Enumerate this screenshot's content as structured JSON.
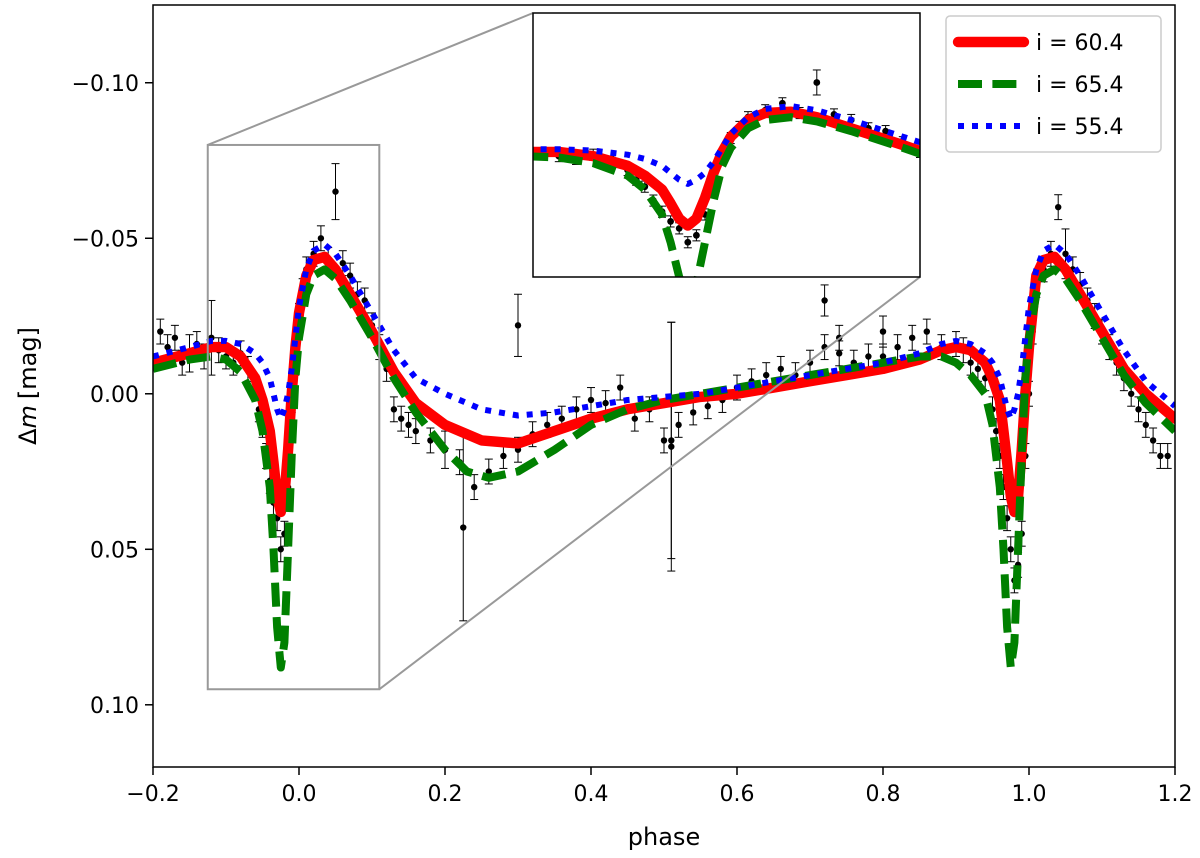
{
  "chart_data": {
    "type": "line",
    "xlabel": "phase",
    "ylabel_prefix": "Δ",
    "ylabel_var": "m",
    "ylabel_unit": "[mag]",
    "xlim": [
      -0.2,
      1.2
    ],
    "ylim": [
      0.12,
      -0.125
    ],
    "y_inverted": true,
    "grid": false,
    "legend_position": "top-right",
    "x_ticks": [
      -0.2,
      0.0,
      0.2,
      0.4,
      0.6,
      0.8,
      1.0,
      1.2
    ],
    "x_tick_labels": [
      "−0.2",
      "0.0",
      "0.2",
      "0.4",
      "0.6",
      "0.8",
      "1.0",
      "1.2"
    ],
    "y_ticks": [
      -0.1,
      -0.05,
      0.0,
      0.05,
      0.1
    ],
    "y_tick_labels": [
      "−0.10",
      "−0.05",
      "0.00",
      "0.05",
      "0.10"
    ],
    "series": [
      {
        "name": "i = 60.4",
        "color": "#ff0000",
        "style": "solid",
        "x": [
          -0.2,
          -0.15,
          -0.12,
          -0.1,
          -0.08,
          -0.06,
          -0.05,
          -0.04,
          -0.035,
          -0.03,
          -0.025,
          -0.02,
          -0.015,
          -0.01,
          -0.005,
          0.0,
          0.01,
          0.02,
          0.035,
          0.05,
          0.07,
          0.1,
          0.13,
          0.16,
          0.2,
          0.25,
          0.3,
          0.35,
          0.4,
          0.45,
          0.5,
          0.55,
          0.6,
          0.65,
          0.7,
          0.75,
          0.8,
          0.85,
          0.88,
          0.9,
          0.92,
          0.94,
          0.95,
          0.96,
          0.965,
          0.97,
          0.975,
          0.98,
          0.985,
          0.99,
          0.995,
          1.0,
          1.01,
          1.02,
          1.035,
          1.05,
          1.07,
          1.1,
          1.13,
          1.16,
          1.2
        ],
        "y": [
          -0.01,
          -0.013,
          -0.015,
          -0.015,
          -0.012,
          -0.005,
          0.002,
          0.012,
          0.022,
          0.033,
          0.038,
          0.033,
          0.018,
          0.0,
          -0.015,
          -0.026,
          -0.038,
          -0.043,
          -0.044,
          -0.04,
          -0.032,
          -0.02,
          -0.007,
          0.003,
          0.01,
          0.015,
          0.016,
          0.012,
          0.008,
          0.005,
          0.003,
          0.001,
          0.0,
          -0.002,
          -0.004,
          -0.006,
          -0.008,
          -0.011,
          -0.014,
          -0.015,
          -0.014,
          -0.01,
          -0.005,
          0.002,
          0.012,
          0.022,
          0.033,
          0.038,
          0.033,
          0.018,
          0.0,
          -0.015,
          -0.038,
          -0.043,
          -0.044,
          -0.04,
          -0.032,
          -0.02,
          -0.008,
          0.0,
          0.008
        ]
      },
      {
        "name": "i = 65.4",
        "color": "#008000",
        "style": "dashed",
        "x": [
          -0.2,
          -0.15,
          -0.12,
          -0.1,
          -0.08,
          -0.06,
          -0.05,
          -0.04,
          -0.035,
          -0.03,
          -0.025,
          -0.02,
          -0.015,
          -0.01,
          -0.005,
          0.0,
          0.01,
          0.02,
          0.035,
          0.05,
          0.07,
          0.1,
          0.13,
          0.16,
          0.2,
          0.23,
          0.26,
          0.3,
          0.35,
          0.4,
          0.45,
          0.5,
          0.55,
          0.6,
          0.65,
          0.7,
          0.75,
          0.8,
          0.85,
          0.88,
          0.9,
          0.92,
          0.94,
          0.95,
          0.96,
          0.965,
          0.97,
          0.975,
          0.98,
          0.985,
          0.99,
          0.995,
          1.0,
          1.01,
          1.02,
          1.035,
          1.05,
          1.07,
          1.1,
          1.13,
          1.16,
          1.2
        ],
        "y": [
          -0.008,
          -0.011,
          -0.012,
          -0.011,
          -0.007,
          0.002,
          0.012,
          0.03,
          0.05,
          0.075,
          0.088,
          0.08,
          0.05,
          0.02,
          -0.005,
          -0.018,
          -0.032,
          -0.038,
          -0.04,
          -0.037,
          -0.03,
          -0.018,
          -0.005,
          0.006,
          0.018,
          0.025,
          0.027,
          0.025,
          0.018,
          0.01,
          0.005,
          0.002,
          0.0,
          -0.002,
          -0.004,
          -0.006,
          -0.008,
          -0.01,
          -0.012,
          -0.012,
          -0.01,
          -0.006,
          0.0,
          0.01,
          0.03,
          0.05,
          0.075,
          0.088,
          0.08,
          0.05,
          0.02,
          -0.005,
          -0.018,
          -0.032,
          -0.038,
          -0.04,
          -0.037,
          -0.03,
          -0.018,
          -0.006,
          0.003,
          0.012
        ]
      },
      {
        "name": "i = 55.4",
        "color": "#0000ff",
        "style": "dotted",
        "x": [
          -0.2,
          -0.15,
          -0.12,
          -0.1,
          -0.08,
          -0.06,
          -0.05,
          -0.04,
          -0.035,
          -0.03,
          -0.025,
          -0.02,
          -0.015,
          -0.01,
          -0.005,
          0.0,
          0.01,
          0.02,
          0.035,
          0.05,
          0.07,
          0.1,
          0.13,
          0.16,
          0.2,
          0.25,
          0.3,
          0.35,
          0.4,
          0.45,
          0.5,
          0.55,
          0.6,
          0.65,
          0.7,
          0.75,
          0.8,
          0.85,
          0.88,
          0.9,
          0.92,
          0.94,
          0.95,
          0.96,
          0.965,
          0.97,
          0.975,
          0.98,
          0.985,
          0.99,
          0.995,
          1.0,
          1.01,
          1.02,
          1.035,
          1.05,
          1.07,
          1.1,
          1.13,
          1.16,
          1.2
        ],
        "y": [
          -0.012,
          -0.015,
          -0.017,
          -0.017,
          -0.016,
          -0.013,
          -0.01,
          -0.005,
          0.0,
          0.005,
          0.008,
          0.005,
          0.0,
          -0.008,
          -0.018,
          -0.028,
          -0.04,
          -0.046,
          -0.048,
          -0.045,
          -0.038,
          -0.026,
          -0.014,
          -0.005,
          0.0,
          0.005,
          0.007,
          0.006,
          0.004,
          0.002,
          0.001,
          0.0,
          -0.002,
          -0.004,
          -0.006,
          -0.008,
          -0.01,
          -0.013,
          -0.016,
          -0.017,
          -0.016,
          -0.013,
          -0.01,
          -0.005,
          0.0,
          0.005,
          0.008,
          0.005,
          0.0,
          -0.008,
          -0.018,
          -0.028,
          -0.04,
          -0.046,
          -0.048,
          -0.045,
          -0.038,
          -0.026,
          -0.014,
          -0.004,
          0.004
        ]
      }
    ],
    "observations": {
      "name": "data",
      "color": "#000000",
      "x": [
        -0.19,
        -0.18,
        -0.17,
        -0.16,
        -0.15,
        -0.14,
        -0.13,
        -0.12,
        -0.11,
        -0.1,
        -0.09,
        -0.08,
        -0.07,
        -0.06,
        -0.055,
        -0.05,
        -0.045,
        -0.04,
        -0.035,
        -0.03,
        -0.025,
        -0.02,
        -0.015,
        -0.01,
        -0.005,
        0.0,
        0.005,
        0.01,
        0.02,
        0.03,
        0.04,
        0.05,
        0.06,
        0.07,
        0.08,
        0.09,
        0.1,
        0.11,
        0.12,
        0.13,
        0.14,
        0.15,
        0.16,
        0.18,
        0.2,
        0.22,
        0.24,
        0.26,
        0.28,
        0.3,
        0.32,
        0.34,
        0.36,
        0.38,
        0.4,
        0.42,
        0.44,
        0.46,
        0.48,
        0.5,
        0.52,
        0.54,
        0.56,
        0.58,
        0.6,
        0.62,
        0.64,
        0.66,
        0.68,
        0.7,
        0.72,
        0.74,
        0.76,
        0.78,
        0.8,
        0.82,
        0.84,
        0.86,
        0.88,
        0.9,
        0.91,
        0.92,
        0.93,
        0.94,
        0.95,
        0.955,
        0.96,
        0.965,
        0.97,
        0.975,
        0.98,
        0.985,
        0.99,
        0.995,
        1.0,
        1.005,
        1.01,
        1.02,
        1.03,
        1.04,
        1.05,
        1.06,
        1.07,
        1.08,
        1.09,
        1.1,
        1.11,
        1.12,
        1.13,
        1.14,
        1.15,
        1.16,
        1.17,
        1.18,
        1.19
      ],
      "y": [
        -0.02,
        -0.015,
        -0.018,
        -0.01,
        -0.013,
        -0.016,
        -0.012,
        -0.018,
        -0.014,
        -0.012,
        -0.01,
        -0.013,
        -0.008,
        -0.002,
        0.005,
        0.01,
        0.02,
        0.028,
        0.035,
        0.04,
        0.05,
        0.045,
        0.03,
        0.01,
        -0.01,
        -0.025,
        -0.033,
        -0.04,
        -0.045,
        -0.05,
        -0.043,
        -0.065,
        -0.042,
        -0.038,
        -0.032,
        -0.03,
        -0.022,
        -0.015,
        -0.008,
        0.005,
        0.008,
        0.01,
        0.012,
        0.015,
        0.018,
        0.022,
        0.03,
        0.025,
        0.02,
        0.018,
        0.013,
        0.01,
        0.008,
        0.005,
        0.002,
        0.003,
        -0.002,
        0.008,
        0.005,
        0.015,
        0.01,
        0.006,
        0.004,
        0.002,
        -0.002,
        -0.004,
        -0.006,
        -0.008,
        -0.006,
        -0.01,
        -0.015,
        -0.013,
        -0.01,
        -0.012,
        -0.012,
        -0.015,
        -0.018,
        -0.02,
        -0.015,
        -0.016,
        -0.014,
        -0.01,
        -0.008,
        -0.005,
        0.005,
        0.012,
        0.02,
        0.03,
        0.04,
        0.05,
        0.06,
        0.055,
        0.045,
        0.02,
        0.0,
        -0.02,
        -0.035,
        -0.04,
        -0.045,
        -0.06,
        -0.045,
        -0.04,
        -0.035,
        -0.03,
        -0.025,
        -0.02,
        -0.015,
        -0.01,
        -0.005,
        0.0,
        0.005,
        0.01,
        0.015,
        0.02,
        0.02
      ],
      "err": [
        0.004,
        0.004,
        0.004,
        0.004,
        0.006,
        0.004,
        0.004,
        0.012,
        0.004,
        0.004,
        0.004,
        0.004,
        0.004,
        0.004,
        0.004,
        0.004,
        0.004,
        0.004,
        0.004,
        0.004,
        0.004,
        0.004,
        0.004,
        0.004,
        0.004,
        0.004,
        0.004,
        0.004,
        0.004,
        0.004,
        0.004,
        0.009,
        0.004,
        0.004,
        0.004,
        0.004,
        0.004,
        0.004,
        0.004,
        0.004,
        0.004,
        0.004,
        0.004,
        0.004,
        0.006,
        0.004,
        0.004,
        0.004,
        0.004,
        0.004,
        0.004,
        0.004,
        0.004,
        0.004,
        0.004,
        0.004,
        0.004,
        0.004,
        0.004,
        0.004,
        0.004,
        0.004,
        0.004,
        0.004,
        0.004,
        0.004,
        0.004,
        0.004,
        0.004,
        0.004,
        0.004,
        0.004,
        0.004,
        0.004,
        0.004,
        0.004,
        0.004,
        0.004,
        0.004,
        0.004,
        0.004,
        0.004,
        0.004,
        0.004,
        0.004,
        0.004,
        0.004,
        0.004,
        0.004,
        0.004,
        0.004,
        0.004,
        0.004,
        0.004,
        0.004,
        0.004,
        0.004,
        0.004,
        0.004,
        0.004,
        0.008,
        0.004,
        0.004,
        0.004,
        0.004,
        0.004,
        0.004,
        0.004,
        0.004,
        0.004,
        0.004,
        0.004,
        0.004,
        0.004,
        0.004
      ]
    },
    "outlier_points": [
      {
        "x": 0.225,
        "y": 0.043,
        "err": 0.03
      },
      {
        "x": 0.3,
        "y": -0.022,
        "err": 0.01
      },
      {
        "x": 0.51,
        "y": 0.017,
        "err": 0.04
      },
      {
        "x": 0.51,
        "y": 0.015,
        "err": 0.038
      },
      {
        "x": 0.72,
        "y": -0.03,
        "err": 0.005
      },
      {
        "x": 0.74,
        "y": -0.018,
        "err": 0.004
      },
      {
        "x": 0.8,
        "y": -0.02,
        "err": 0.005
      }
    ],
    "inset": {
      "source_xlim": [
        -0.125,
        0.11
      ],
      "source_ylim": [
        0.095,
        -0.08
      ],
      "xlim": [
        -0.115,
        0.11
      ],
      "ylim": [
        0.075,
        -0.115
      ]
    }
  }
}
